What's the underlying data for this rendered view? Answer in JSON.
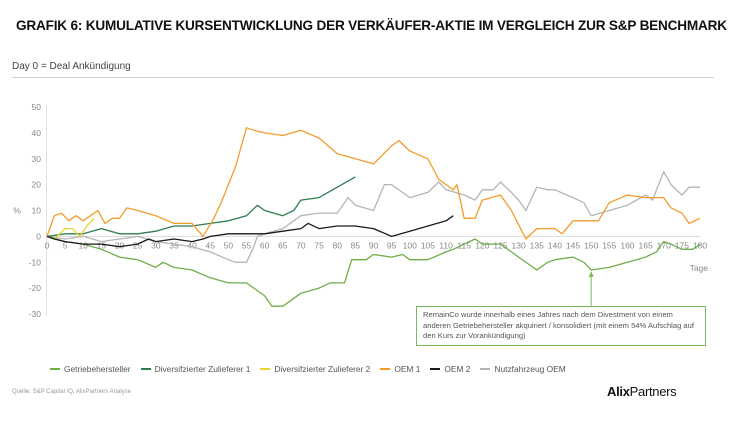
{
  "header": {
    "title": "GRAFIK 6: KUMULATIVE KURSENTWICKLUNG DER VERKÄUFER-AKTIE IM VERGLEICH ZUR S&P BENCHMARK",
    "subtitle": "Day 0 = Deal Ankündigung"
  },
  "footer": {
    "source": "Quelle: S&P Capital IQ, AlixPartners Analyse",
    "logo_bold": "Alix",
    "logo_regular": "Partners"
  },
  "annotation": {
    "text": "RemainCo wurde innerhalb eines Jahres nach dem Divestment von einem anderen Getriebehersteller akquiriert / konsolidiert (mit einem 54% Aufschlag auf den Kurs zur Vorankündigung)",
    "points_to_day": 150,
    "series": "Getriebehersteller"
  },
  "chart_data": {
    "type": "line",
    "title": "GRAFIK 6: KUMULATIVE KURSENTWICKLUNG DER VERKÄUFER-AKTIE IM VERGLEICH ZUR S&P BENCHMARK",
    "subtitle": "Day 0 = Deal Ankündigung",
    "xlabel": "Tage",
    "ylabel": "%",
    "xlim": [
      0,
      180
    ],
    "ylim": [
      -30,
      50
    ],
    "xticks": [
      0,
      5,
      10,
      15,
      20,
      25,
      30,
      35,
      40,
      45,
      50,
      55,
      60,
      65,
      70,
      75,
      80,
      85,
      90,
      95,
      100,
      105,
      110,
      115,
      120,
      125,
      130,
      135,
      140,
      145,
      150,
      155,
      160,
      165,
      170,
      175,
      180
    ],
    "yticks": [
      -30,
      -20,
      -10,
      0,
      10,
      20,
      30,
      40,
      50
    ],
    "grid": false,
    "legend_position": "bottom",
    "series": [
      {
        "name": "Getriebehersteller",
        "color": "#70ad47",
        "points": [
          [
            0,
            0
          ],
          [
            5,
            -2
          ],
          [
            10,
            -3
          ],
          [
            15,
            -5
          ],
          [
            20,
            -8
          ],
          [
            25,
            -9
          ],
          [
            30,
            -12
          ],
          [
            32,
            -10
          ],
          [
            35,
            -12
          ],
          [
            40,
            -13
          ],
          [
            45,
            -16
          ],
          [
            50,
            -18
          ],
          [
            55,
            -18
          ],
          [
            60,
            -23
          ],
          [
            62,
            -27
          ],
          [
            65,
            -27
          ],
          [
            70,
            -22
          ],
          [
            75,
            -20
          ],
          [
            78,
            -18
          ],
          [
            82,
            -18
          ],
          [
            84,
            -9
          ],
          [
            88,
            -9
          ],
          [
            90,
            -7
          ],
          [
            95,
            -8
          ],
          [
            98,
            -7
          ],
          [
            100,
            -9
          ],
          [
            105,
            -9
          ],
          [
            110,
            -6
          ],
          [
            112,
            -5
          ],
          [
            115,
            -3
          ],
          [
            118,
            -1
          ],
          [
            120,
            -3
          ],
          [
            125,
            -3
          ],
          [
            128,
            -6
          ],
          [
            130,
            -8
          ],
          [
            135,
            -13
          ],
          [
            138,
            -10
          ],
          [
            140,
            -9
          ],
          [
            145,
            -8
          ],
          [
            148,
            -10
          ],
          [
            150,
            -13
          ],
          [
            155,
            -12
          ],
          [
            160,
            -10
          ],
          [
            165,
            -8
          ],
          [
            168,
            -6
          ],
          [
            170,
            -2
          ],
          [
            172,
            -3
          ],
          [
            175,
            -5
          ],
          [
            178,
            -5
          ],
          [
            180,
            -3
          ]
        ]
      },
      {
        "name": "Diversifzierter Zulieferer 1",
        "color": "#2e7d4f",
        "points": [
          [
            0,
            0
          ],
          [
            5,
            1
          ],
          [
            10,
            1
          ],
          [
            15,
            3
          ],
          [
            20,
            1
          ],
          [
            25,
            1
          ],
          [
            30,
            2
          ],
          [
            35,
            4
          ],
          [
            40,
            4
          ],
          [
            45,
            5
          ],
          [
            50,
            6
          ],
          [
            55,
            8
          ],
          [
            58,
            12
          ],
          [
            60,
            10
          ],
          [
            65,
            8
          ],
          [
            68,
            10
          ],
          [
            70,
            14
          ],
          [
            75,
            15
          ],
          [
            80,
            19
          ],
          [
            85,
            23
          ]
        ]
      },
      {
        "name": "Diversifzierter Zulieferer 2",
        "color": "#e8d631",
        "points": [
          [
            0,
            0
          ],
          [
            2,
            -1
          ],
          [
            5,
            3
          ],
          [
            7,
            3
          ],
          [
            9,
            0
          ],
          [
            11,
            4
          ],
          [
            13,
            7
          ]
        ]
      },
      {
        "name": "OEM 1",
        "color": "#f39c2c",
        "points": [
          [
            0,
            0
          ],
          [
            2,
            8
          ],
          [
            4,
            9
          ],
          [
            6,
            6
          ],
          [
            8,
            8
          ],
          [
            10,
            6
          ],
          [
            12,
            8
          ],
          [
            14,
            10
          ],
          [
            16,
            5
          ],
          [
            18,
            7
          ],
          [
            20,
            7
          ],
          [
            22,
            11
          ],
          [
            25,
            10
          ],
          [
            30,
            8
          ],
          [
            35,
            5
          ],
          [
            40,
            5
          ],
          [
            43,
            0
          ],
          [
            46,
            7
          ],
          [
            48,
            13
          ],
          [
            50,
            20
          ],
          [
            52,
            27
          ],
          [
            55,
            42
          ],
          [
            57,
            41
          ],
          [
            60,
            40
          ],
          [
            65,
            39
          ],
          [
            70,
            41
          ],
          [
            75,
            38
          ],
          [
            80,
            32
          ],
          [
            85,
            30
          ],
          [
            90,
            28
          ],
          [
            95,
            35
          ],
          [
            97,
            37
          ],
          [
            100,
            33
          ],
          [
            105,
            30
          ],
          [
            108,
            22
          ],
          [
            112,
            18
          ],
          [
            113,
            20
          ],
          [
            115,
            7
          ],
          [
            118,
            7
          ],
          [
            120,
            14
          ],
          [
            125,
            16
          ],
          [
            128,
            10
          ],
          [
            132,
            -1
          ],
          [
            135,
            3
          ],
          [
            140,
            3
          ],
          [
            142,
            1
          ],
          [
            145,
            6
          ],
          [
            150,
            6
          ],
          [
            152,
            6
          ],
          [
            155,
            13
          ],
          [
            160,
            16
          ],
          [
            165,
            15
          ],
          [
            170,
            15
          ],
          [
            172,
            11
          ],
          [
            175,
            9
          ],
          [
            177,
            5
          ],
          [
            180,
            7
          ]
        ]
      },
      {
        "name": "OEM 2",
        "color": "#1a1a1a",
        "points": [
          [
            0,
            0
          ],
          [
            2,
            -1
          ],
          [
            5,
            -2
          ],
          [
            10,
            -3
          ],
          [
            15,
            -3
          ],
          [
            20,
            -4
          ],
          [
            25,
            -3
          ],
          [
            28,
            -1
          ],
          [
            30,
            -2
          ],
          [
            35,
            -1
          ],
          [
            40,
            -2
          ],
          [
            43,
            -1
          ],
          [
            45,
            0
          ],
          [
            50,
            1
          ],
          [
            55,
            1
          ],
          [
            60,
            1
          ],
          [
            65,
            2
          ],
          [
            70,
            3
          ],
          [
            72,
            5
          ],
          [
            75,
            3
          ],
          [
            80,
            4
          ],
          [
            85,
            4
          ],
          [
            90,
            3
          ],
          [
            95,
            0
          ],
          [
            100,
            2
          ],
          [
            105,
            4
          ],
          [
            110,
            6
          ],
          [
            112,
            8
          ]
        ]
      },
      {
        "name": "Nutzfahrzeug OEM",
        "color": "#b5b5b5",
        "points": [
          [
            0,
            0
          ],
          [
            5,
            -1
          ],
          [
            10,
            0
          ],
          [
            15,
            -2
          ],
          [
            20,
            -1
          ],
          [
            25,
            0
          ],
          [
            30,
            -2
          ],
          [
            35,
            -3
          ],
          [
            40,
            -4
          ],
          [
            45,
            -6
          ],
          [
            50,
            -9
          ],
          [
            52,
            -10
          ],
          [
            55,
            -10
          ],
          [
            57,
            -4
          ],
          [
            58,
            0
          ],
          [
            60,
            1
          ],
          [
            65,
            3
          ],
          [
            70,
            8
          ],
          [
            75,
            9
          ],
          [
            80,
            9
          ],
          [
            83,
            15
          ],
          [
            85,
            12
          ],
          [
            90,
            10
          ],
          [
            93,
            20
          ],
          [
            95,
            20
          ],
          [
            100,
            15
          ],
          [
            105,
            17
          ],
          [
            108,
            21
          ],
          [
            110,
            18
          ],
          [
            115,
            16
          ],
          [
            118,
            14
          ],
          [
            120,
            18
          ],
          [
            123,
            18
          ],
          [
            125,
            21
          ],
          [
            128,
            17
          ],
          [
            130,
            14
          ],
          [
            132,
            10
          ],
          [
            135,
            19
          ],
          [
            138,
            18
          ],
          [
            140,
            18
          ],
          [
            145,
            15
          ],
          [
            148,
            13
          ],
          [
            150,
            8
          ],
          [
            155,
            10
          ],
          [
            160,
            12
          ],
          [
            165,
            16
          ],
          [
            167,
            14
          ],
          [
            168,
            18
          ],
          [
            170,
            25
          ],
          [
            172,
            20
          ],
          [
            175,
            16
          ],
          [
            177,
            19
          ],
          [
            180,
            19
          ]
        ]
      }
    ]
  }
}
